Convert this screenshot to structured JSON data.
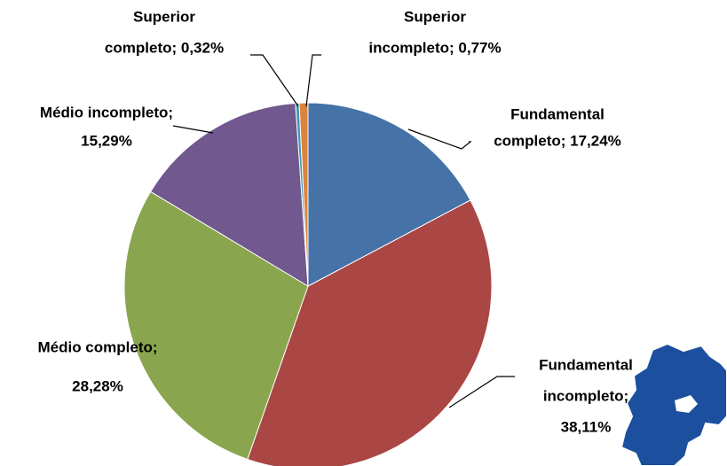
{
  "chart_data": {
    "type": "pie",
    "values": [
      17.24,
      38.11,
      28.28,
      15.29,
      0.32,
      0.77
    ],
    "value_labels": [
      [
        "Fundamental",
        "completo; 17,24%"
      ],
      [
        "Fundamental",
        "incompleto;",
        "38,11%"
      ],
      [
        "Médio completo;",
        "28,28%"
      ],
      [
        "Médio incompleto;",
        "15,29%"
      ],
      [
        "Superior",
        "completo; 0,32%"
      ],
      [
        "Superior",
        "incompleto; 0,77%"
      ]
    ],
    "colors": [
      "#4572a7",
      "#aa4643",
      "#89a54e",
      "#71588f",
      "#4198af",
      "#db843d"
    ]
  }
}
